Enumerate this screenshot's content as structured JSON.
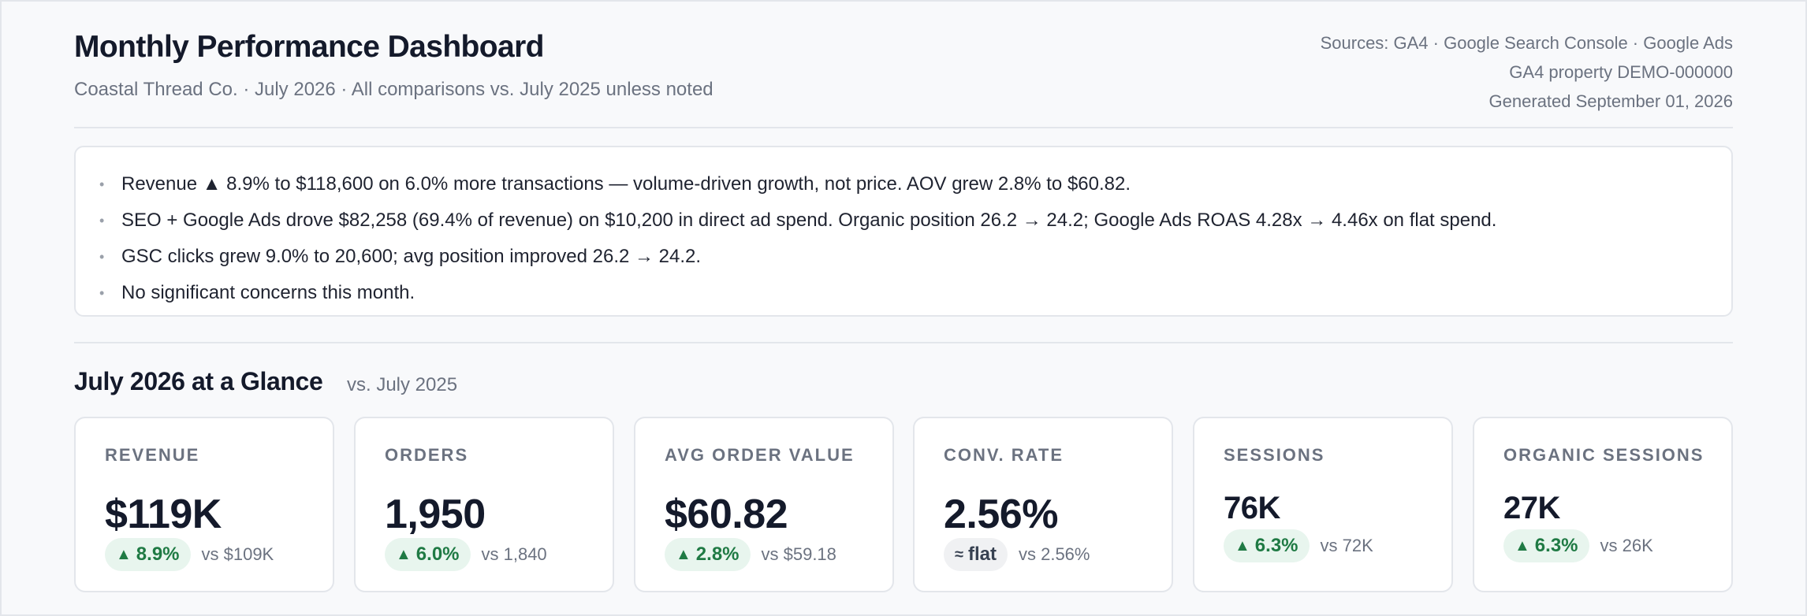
{
  "header": {
    "title": "Monthly Performance Dashboard",
    "subtitle": "Coastal Thread Co. · July 2026  ·  All comparisons vs. July 2025 unless noted",
    "sources": "Sources: GA4 · Google Search Console · Google Ads",
    "property": "GA4 property DEMO-000000",
    "generated": "Generated September 01, 2026"
  },
  "summary": {
    "bullets": [
      "Revenue ▲ 8.9% to $118,600 on 6.0% more transactions — volume-driven growth, not price. AOV grew 2.8% to $60.82.",
      "SEO + Google Ads drove $82,258 (69.4% of revenue) on $10,200 in direct ad spend. Organic position 26.2 → 24.2; Google Ads ROAS 4.28x → 4.46x on flat spend.",
      "GSC clicks grew 9.0% to 20,600; avg position improved 26.2 → 24.2.",
      "No significant concerns this month."
    ]
  },
  "glance": {
    "title": "July 2026 at a Glance",
    "subtitle": "vs. July 2025",
    "cards": [
      {
        "label": "REVENUE",
        "value": "$119K",
        "arrow": "▲",
        "change": "8.9%",
        "compare": "vs $109K",
        "trend": "up"
      },
      {
        "label": "ORDERS",
        "value": "1,950",
        "arrow": "▲",
        "change": "6.0%",
        "compare": "vs 1,840",
        "trend": "up"
      },
      {
        "label": "AVG ORDER VALUE",
        "value": "$60.82",
        "arrow": "▲",
        "change": "2.8%",
        "compare": "vs $59.18",
        "trend": "up"
      },
      {
        "label": "CONV. RATE",
        "value": "2.56%",
        "arrow": "≈",
        "change": "flat",
        "compare": "vs 2.56%",
        "trend": "flat"
      },
      {
        "label": "SESSIONS",
        "value": "76K",
        "arrow": "▲",
        "change": "6.3%",
        "compare": "vs 72K",
        "trend": "up"
      },
      {
        "label": "ORGANIC SESSIONS",
        "value": "27K",
        "arrow": "▲",
        "change": "6.3%",
        "compare": "vs 26K",
        "trend": "up"
      }
    ]
  },
  "colors": {
    "up_text": "#1f7a44",
    "up_bg": "#e8f5ee",
    "flat_bg": "#f0f1f3",
    "title": "#141a2b",
    "muted": "#6b7280"
  }
}
